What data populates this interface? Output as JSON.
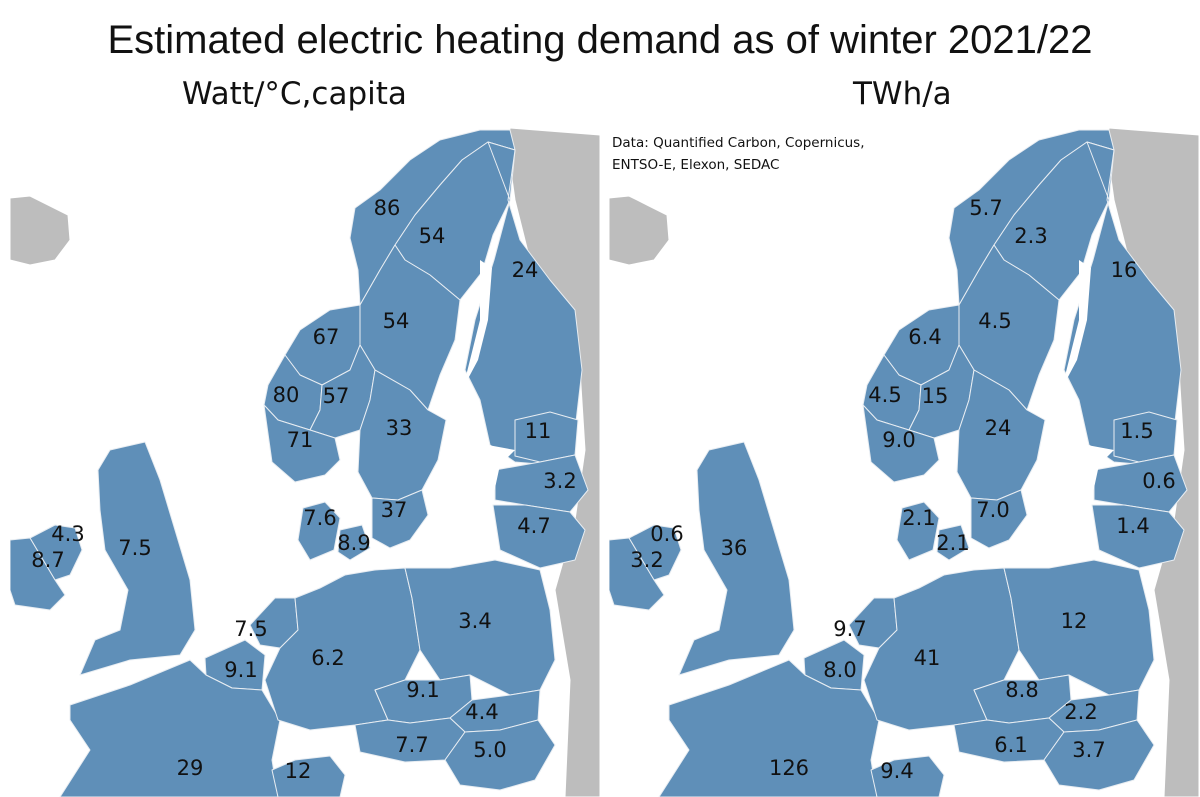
{
  "title": "Estimated electric heating demand as of winter 2021/22",
  "source": [
    "Data: Quantified Carbon, Copernicus,",
    "ENTSO-E, Elexon, SEDAC"
  ],
  "colors": {
    "region_fill": "#5f8fb8",
    "border": "#e8edf2",
    "other_land": "#bdbdbd",
    "sea": "#ffffff"
  },
  "panels": [
    {
      "unit": "Watt/°C,capita",
      "values": {
        "no_north": "86",
        "se_north": "54",
        "fi": "24",
        "se_mid": "54",
        "no_mid": "67",
        "no_west": "80",
        "no_east": "57",
        "no_south": "71",
        "se_south": "33",
        "ee": "11",
        "lv": "3.2",
        "lt": "4.7",
        "dk_west": "7.6",
        "se_southmost": "37",
        "dk_east": "8.9",
        "ie": "4.3",
        "ni": "8.7",
        "gb": "7.5",
        "nl": "7.5",
        "be": "9.1",
        "de": "6.2",
        "pl": "3.4",
        "cz": "9.1",
        "sk": "4.4",
        "at": "7.7",
        "hu": "5.0",
        "fr": "29",
        "ch": "12"
      }
    },
    {
      "unit": "TWh/a",
      "values": {
        "no_north": "5.7",
        "se_north": "2.3",
        "fi": "16",
        "se_mid": "4.5",
        "no_mid": "6.4",
        "no_west": "4.5",
        "no_east": "15",
        "no_south": "9.0",
        "se_south": "24",
        "ee": "1.5",
        "lv": "0.6",
        "lt": "1.4",
        "dk_west": "2.1",
        "se_southmost": "7.0",
        "dk_east": "2.1",
        "ie": "0.6",
        "ni": "3.2",
        "gb": "36",
        "nl": "9.7",
        "be": "8.0",
        "de": "41",
        "pl": "12",
        "cz": "8.8",
        "sk": "2.2",
        "at": "6.1",
        "hu": "3.7",
        "fr": "126",
        "ch": "9.4"
      }
    }
  ]
}
